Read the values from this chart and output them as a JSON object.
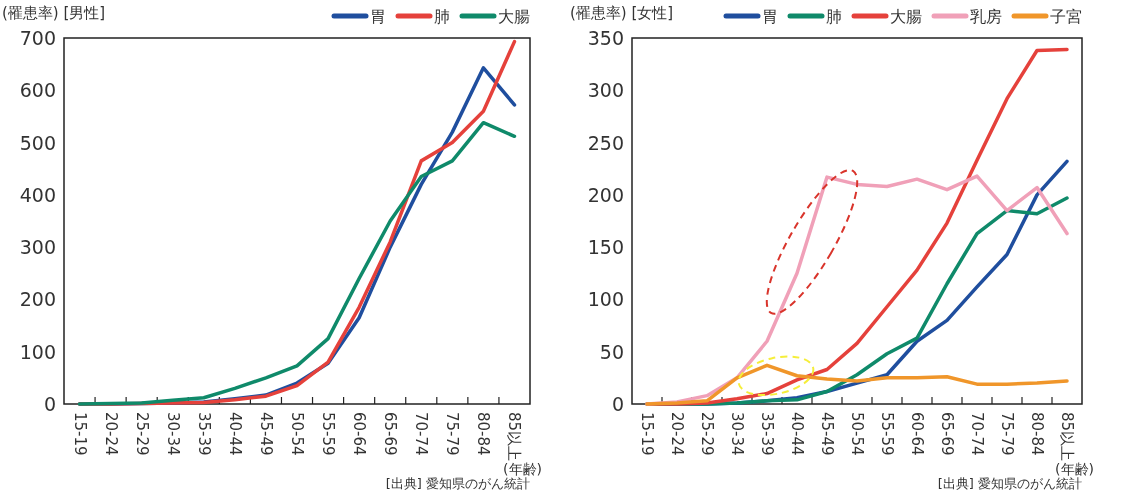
{
  "chart_data": [
    {
      "type": "line",
      "ylabel": "(罹患率) [男性]",
      "xlabel": "(年齢)",
      "legend": "top right",
      "categories": [
        "15-19",
        "20-24",
        "25-29",
        "30-34",
        "35-39",
        "40-44",
        "45-49",
        "50-54",
        "55-59",
        "60-64",
        "65-69",
        "70-74",
        "75-79",
        "80-84",
        "85以上"
      ],
      "ylim": [
        0,
        700
      ],
      "yticks": [
        0,
        100,
        200,
        300,
        400,
        500,
        600,
        700
      ],
      "series": [
        {
          "name": "胃",
          "color": "#1f4e9e",
          "values": [
            0,
            0,
            1,
            2,
            4,
            10,
            17,
            40,
            78,
            165,
            300,
            420,
            520,
            643,
            572
          ]
        },
        {
          "name": "肺",
          "color": "#e5413b",
          "values": [
            0,
            0,
            1,
            2,
            3,
            8,
            15,
            35,
            80,
            185,
            310,
            465,
            500,
            560,
            693
          ]
        },
        {
          "name": "大腸",
          "color": "#0f8a6a",
          "values": [
            0,
            1,
            2,
            7,
            12,
            30,
            50,
            73,
            125,
            240,
            350,
            435,
            465,
            538,
            512
          ]
        }
      ],
      "annotations": [
        "[出典] 愛知県のがん統計"
      ]
    },
    {
      "type": "line",
      "ylabel": "(罹患率) [女性]",
      "xlabel": "(年齢)",
      "legend": "top right",
      "categories": [
        "15-19",
        "20-24",
        "25-29",
        "30-34",
        "35-39",
        "40-44",
        "45-49",
        "50-54",
        "55-59",
        "60-64",
        "65-69",
        "70-74",
        "75-79",
        "80-84",
        "85以上"
      ],
      "ylim": [
        0,
        350
      ],
      "yticks": [
        0,
        50,
        100,
        150,
        200,
        250,
        300,
        350
      ],
      "series": [
        {
          "name": "胃",
          "color": "#1f4e9e",
          "values": [
            0,
            0,
            0,
            1,
            3,
            6,
            12,
            20,
            28,
            60,
            80,
            112,
            143,
            200,
            232
          ]
        },
        {
          "name": "肺",
          "color": "#0f8a6a",
          "values": [
            0,
            0,
            0,
            1,
            3,
            4,
            12,
            28,
            48,
            63,
            115,
            163,
            185,
            182,
            197
          ]
        },
        {
          "name": "大腸",
          "color": "#e5413b",
          "values": [
            0,
            0,
            1,
            5,
            10,
            23,
            33,
            58,
            93,
            128,
            173,
            233,
            292,
            338,
            339
          ]
        },
        {
          "name": "乳房",
          "color": "#f0a0b8",
          "values": [
            0,
            2,
            8,
            25,
            60,
            125,
            217,
            210,
            208,
            215,
            205,
            218,
            185,
            207,
            163
          ]
        },
        {
          "name": "子宮",
          "color": "#f0962a",
          "values": [
            0,
            1,
            3,
            25,
            37,
            27,
            24,
            22,
            25,
            25,
            26,
            19,
            19,
            20,
            22
          ]
        }
      ],
      "annotations": [
        "[出典] 愛知県のがん統計"
      ]
    }
  ]
}
